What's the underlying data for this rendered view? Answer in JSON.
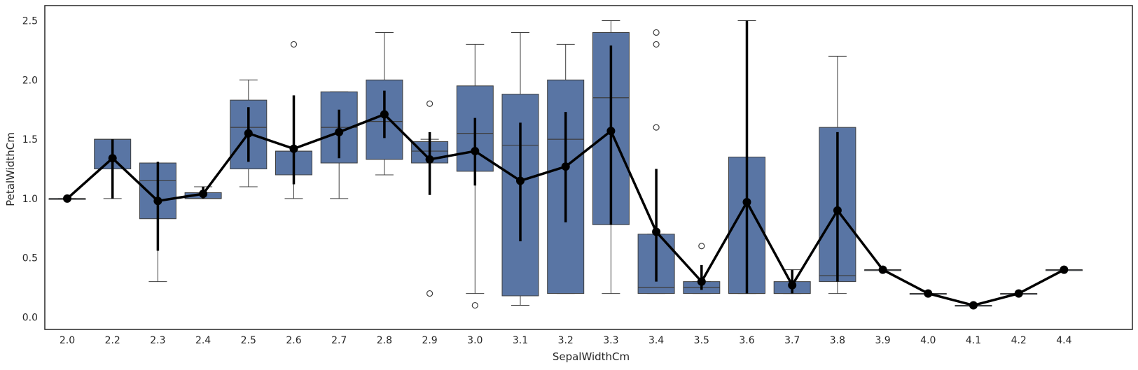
{
  "chart_data": {
    "type": "box",
    "xlabel": "SepalWidthCm",
    "ylabel": "PetalWidthCm",
    "ylim": [
      0,
      2.62
    ],
    "yticks": [
      "0.0",
      "0.5",
      "1.0",
      "1.5",
      "2.0",
      "2.5"
    ],
    "categories": [
      "2.0",
      "2.2",
      "2.3",
      "2.4",
      "2.5",
      "2.6",
      "2.7",
      "2.8",
      "2.9",
      "3.0",
      "3.1",
      "3.2",
      "3.3",
      "3.4",
      "3.5",
      "3.6",
      "3.7",
      "3.8",
      "3.9",
      "4.0",
      "4.1",
      "4.2",
      "4.4"
    ],
    "box_color": "#5975a4",
    "line_color": "#000000",
    "grid": false,
    "boxes": [
      {
        "q1": 1.0,
        "median": 1.0,
        "q3": 1.0,
        "whisker_low": 1.0,
        "whisker_high": 1.0,
        "outliers": []
      },
      {
        "q1": 1.25,
        "median": 1.5,
        "q3": 1.5,
        "whisker_low": 1.0,
        "whisker_high": 1.5,
        "outliers": []
      },
      {
        "q1": 0.83,
        "median": 1.15,
        "q3": 1.3,
        "whisker_low": 0.3,
        "whisker_high": 1.3,
        "outliers": []
      },
      {
        "q1": 1.0,
        "median": 1.0,
        "q3": 1.05,
        "whisker_low": 1.0,
        "whisker_high": 1.1,
        "outliers": []
      },
      {
        "q1": 1.25,
        "median": 1.6,
        "q3": 1.83,
        "whisker_low": 1.1,
        "whisker_high": 2.0,
        "outliers": []
      },
      {
        "q1": 1.2,
        "median": 1.4,
        "q3": 1.4,
        "whisker_low": 1.0,
        "whisker_high": 1.4,
        "outliers": [
          2.3
        ]
      },
      {
        "q1": 1.3,
        "median": 1.6,
        "q3": 1.9,
        "whisker_low": 1.0,
        "whisker_high": 1.9,
        "outliers": []
      },
      {
        "q1": 1.33,
        "median": 1.65,
        "q3": 2.0,
        "whisker_low": 1.2,
        "whisker_high": 2.4,
        "outliers": []
      },
      {
        "q1": 1.3,
        "median": 1.4,
        "q3": 1.48,
        "whisker_low": 1.3,
        "whisker_high": 1.5,
        "outliers": [
          1.8,
          0.2
        ]
      },
      {
        "q1": 1.23,
        "median": 1.55,
        "q3": 1.95,
        "whisker_low": 0.2,
        "whisker_high": 2.3,
        "outliers": [
          0.1
        ]
      },
      {
        "q1": 0.18,
        "median": 1.45,
        "q3": 1.88,
        "whisker_low": 0.1,
        "whisker_high": 2.4,
        "outliers": []
      },
      {
        "q1": 0.2,
        "median": 1.5,
        "q3": 2.0,
        "whisker_low": 0.2,
        "whisker_high": 2.3,
        "outliers": []
      },
      {
        "q1": 0.78,
        "median": 1.85,
        "q3": 2.4,
        "whisker_low": 0.2,
        "whisker_high": 2.5,
        "outliers": []
      },
      {
        "q1": 0.2,
        "median": 0.25,
        "q3": 0.7,
        "whisker_low": 0.2,
        "whisker_high": 0.7,
        "outliers": [
          2.4,
          2.3,
          1.6
        ]
      },
      {
        "q1": 0.2,
        "median": 0.25,
        "q3": 0.3,
        "whisker_low": 0.2,
        "whisker_high": 0.3,
        "outliers": [
          0.6
        ]
      },
      {
        "q1": 0.2,
        "median": 0.2,
        "q3": 1.35,
        "whisker_low": 0.2,
        "whisker_high": 2.5,
        "outliers": []
      },
      {
        "q1": 0.2,
        "median": 0.2,
        "q3": 0.3,
        "whisker_low": 0.2,
        "whisker_high": 0.4,
        "outliers": []
      },
      {
        "q1": 0.3,
        "median": 0.35,
        "q3": 1.6,
        "whisker_low": 0.2,
        "whisker_high": 2.2,
        "outliers": []
      },
      {
        "q1": 0.4,
        "median": 0.4,
        "q3": 0.4,
        "whisker_low": 0.4,
        "whisker_high": 0.4,
        "outliers": []
      },
      {
        "q1": 0.2,
        "median": 0.2,
        "q3": 0.2,
        "whisker_low": 0.2,
        "whisker_high": 0.2,
        "outliers": []
      },
      {
        "q1": 0.1,
        "median": 0.1,
        "q3": 0.1,
        "whisker_low": 0.1,
        "whisker_high": 0.1,
        "outliers": []
      },
      {
        "q1": 0.2,
        "median": 0.2,
        "q3": 0.2,
        "whisker_low": 0.2,
        "whisker_high": 0.2,
        "outliers": []
      },
      {
        "q1": 0.4,
        "median": 0.4,
        "q3": 0.4,
        "whisker_low": 0.4,
        "whisker_high": 0.4,
        "outliers": []
      }
    ],
    "point_series": {
      "means": [
        1.0,
        1.34,
        0.98,
        1.04,
        1.55,
        1.42,
        1.56,
        1.71,
        1.33,
        1.4,
        1.15,
        1.27,
        1.57,
        0.72,
        0.3,
        0.97,
        0.27,
        0.9,
        0.4,
        0.2,
        0.1,
        0.2,
        0.4
      ],
      "ci_low": [
        1.0,
        1.0,
        0.56,
        1.0,
        1.31,
        1.12,
        1.34,
        1.51,
        1.03,
        1.11,
        0.64,
        0.8,
        0.78,
        0.3,
        0.23,
        0.2,
        0.2,
        0.3,
        0.4,
        0.2,
        0.1,
        0.2,
        0.4
      ],
      "ci_high": [
        1.0,
        1.5,
        1.31,
        1.1,
        1.77,
        1.87,
        1.75,
        1.91,
        1.56,
        1.68,
        1.64,
        1.73,
        2.29,
        1.25,
        0.44,
        2.5,
        0.4,
        1.56,
        0.4,
        0.2,
        0.1,
        0.2,
        0.4
      ]
    }
  }
}
